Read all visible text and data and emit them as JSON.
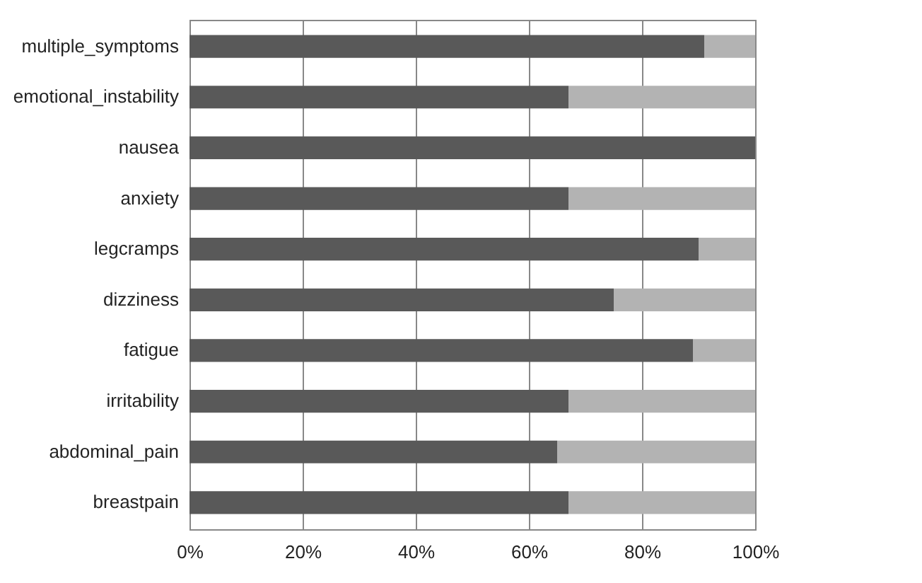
{
  "chart_data": {
    "type": "bar",
    "orientation": "horizontal",
    "stacked": true,
    "categories": [
      "multiple_symptoms",
      "emotional_instability",
      "nausea",
      "anxiety",
      "legcramps",
      "dizziness",
      "fatigue",
      "irritability",
      "abdominal_pain",
      "breastpain"
    ],
    "series": [
      {
        "color": "#595959",
        "values": [
          91,
          67,
          100,
          67,
          90,
          75,
          89,
          67,
          65,
          67
        ]
      },
      {
        "color": "#b3b3b3",
        "values": [
          9,
          33,
          0,
          33,
          10,
          25,
          11,
          33,
          35,
          33
        ]
      }
    ],
    "xlim": [
      0,
      100
    ],
    "xticks": [
      {
        "value": 0,
        "label": "0%"
      },
      {
        "value": 20,
        "label": "20%"
      },
      {
        "value": 40,
        "label": "40%"
      },
      {
        "value": 60,
        "label": "60%"
      },
      {
        "value": 80,
        "label": "80%"
      },
      {
        "value": 100,
        "label": "100%"
      }
    ],
    "grid": "x",
    "legend": false
  }
}
